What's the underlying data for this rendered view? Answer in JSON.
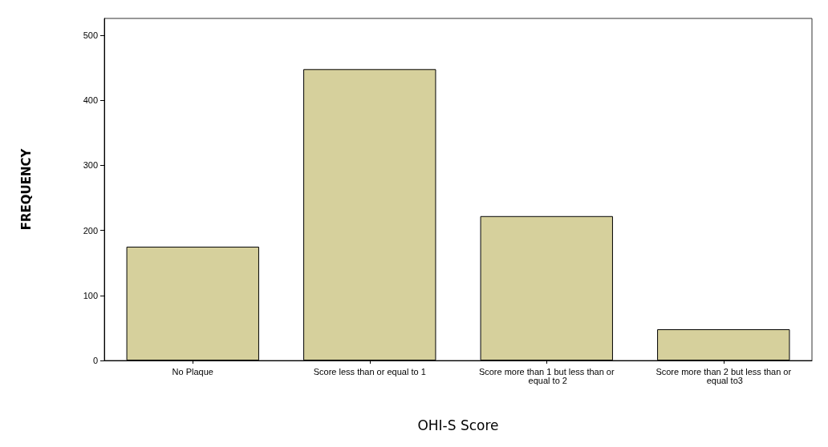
{
  "chart_data": {
    "type": "bar",
    "xlabel": "OHI-S Score",
    "ylabel": "FREQUENCY",
    "categories": [
      "No Plaque",
      "Score less than or equal to 1",
      "Score more than 1 but less than or equal to 2",
      "Score more than 2 but less than or equal to3"
    ],
    "values": [
      175,
      448,
      222,
      48
    ],
    "color": "#d6d09c",
    "ylim": [
      0,
      526
    ],
    "yticks": [
      0,
      100,
      200,
      300,
      400,
      500
    ],
    "grid": false
  }
}
